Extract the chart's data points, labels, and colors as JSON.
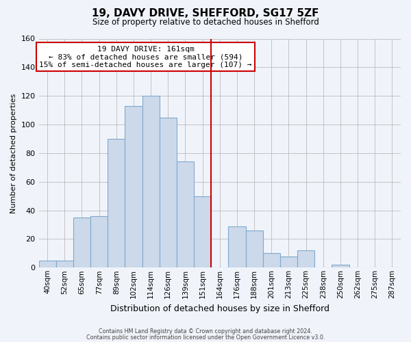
{
  "title": "19, DAVY DRIVE, SHEFFORD, SG17 5ZF",
  "subtitle": "Size of property relative to detached houses in Shefford",
  "xlabel": "Distribution of detached houses by size in Shefford",
  "ylabel": "Number of detached properties",
  "bar_labels": [
    "40sqm",
    "52sqm",
    "65sqm",
    "77sqm",
    "89sqm",
    "102sqm",
    "114sqm",
    "126sqm",
    "139sqm",
    "151sqm",
    "164sqm",
    "176sqm",
    "188sqm",
    "201sqm",
    "213sqm",
    "225sqm",
    "238sqm",
    "250sqm",
    "262sqm",
    "275sqm",
    "287sqm"
  ],
  "bar_heights": [
    5,
    5,
    35,
    36,
    90,
    113,
    120,
    105,
    74,
    50,
    0,
    29,
    26,
    10,
    8,
    12,
    0,
    2,
    0,
    0,
    0
  ],
  "bar_color": "#ccd9ea",
  "bar_edge_color": "#7fa8cc",
  "highlight_line_color": "#cc0000",
  "ylim": [
    0,
    160
  ],
  "yticks": [
    0,
    20,
    40,
    60,
    80,
    100,
    120,
    140,
    160
  ],
  "annotation_title": "19 DAVY DRIVE: 161sqm",
  "annotation_line1": "← 83% of detached houses are smaller (594)",
  "annotation_line2": "15% of semi-detached houses are larger (107) →",
  "annotation_box_color": "#ffffff",
  "annotation_box_edge": "#cc0000",
  "footer_line1": "Contains HM Land Registry data © Crown copyright and database right 2024.",
  "footer_line2": "Contains public sector information licensed under the Open Government Licence v3.0.",
  "background_color": "#f0f4fa",
  "grid_color": "#bbbbbb"
}
